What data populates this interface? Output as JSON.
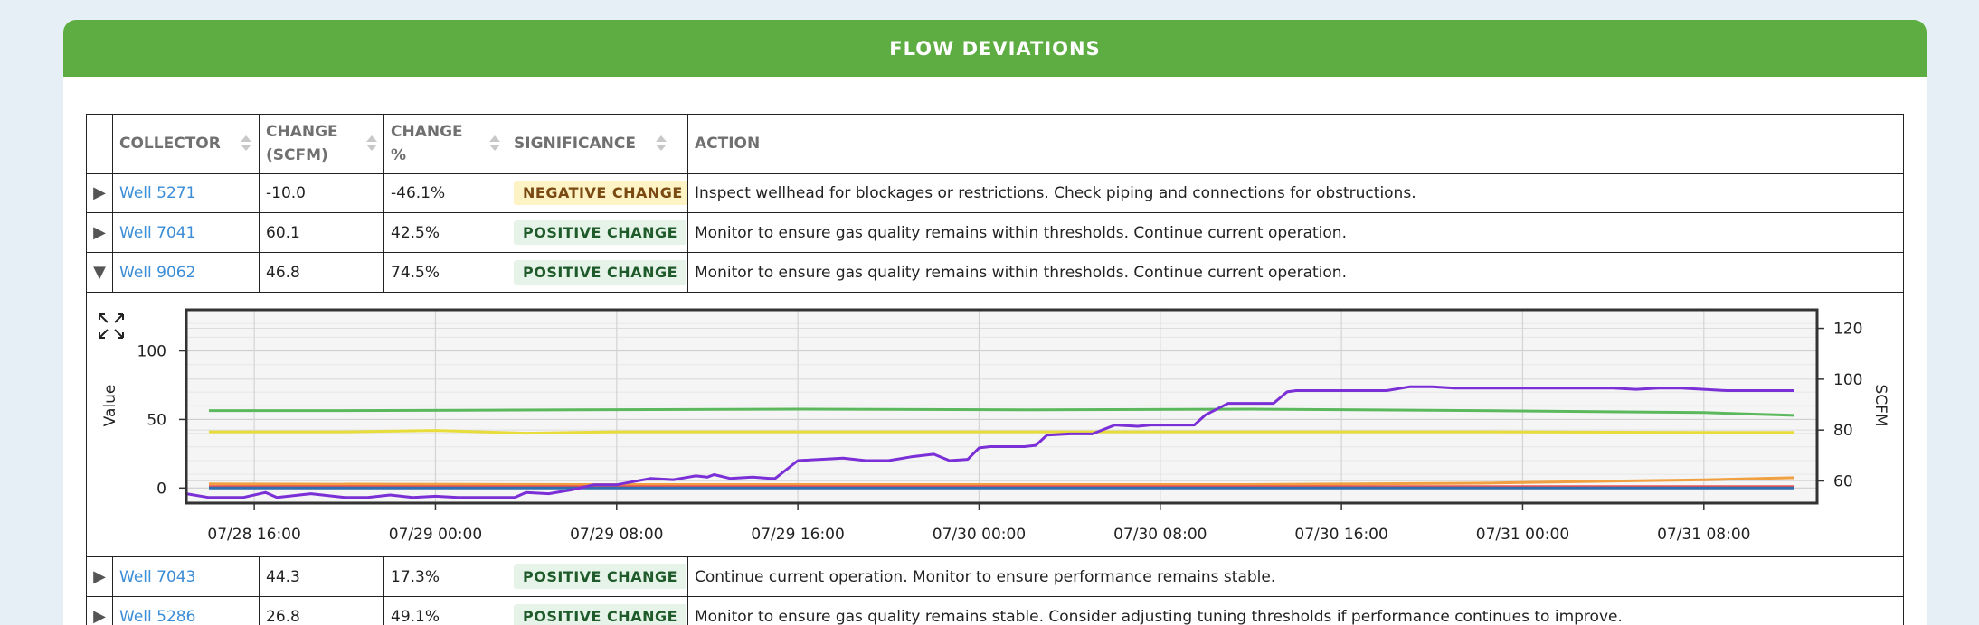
{
  "panel": {
    "title": "FLOW DEVIATIONS"
  },
  "table": {
    "headers": {
      "collector": "COLLECTOR",
      "change_scfm": "CHANGE (SCFM)",
      "change_pct": "CHANGE %",
      "significance": "SIGNIFICANCE",
      "action": "ACTION"
    },
    "rows_top": [
      {
        "well": "Well 5271",
        "change": "-10.0",
        "pct": "-46.1%",
        "significance": "NEGATIVE CHANGE",
        "type": "neg",
        "action": "Inspect wellhead for blockages or restrictions. Check piping and connections for obstructions.",
        "expanded": false
      },
      {
        "well": "Well 7041",
        "change": "60.1",
        "pct": "42.5%",
        "significance": "POSITIVE CHANGE",
        "type": "pos",
        "action": "Monitor to ensure gas quality remains within thresholds. Continue current operation.",
        "expanded": false
      },
      {
        "well": "Well 9062",
        "change": "46.8",
        "pct": "74.5%",
        "significance": "POSITIVE CHANGE",
        "type": "pos",
        "action": "Monitor to ensure gas quality remains within thresholds. Continue current operation.",
        "expanded": true
      }
    ],
    "rows_bottom": [
      {
        "well": "Well 7043",
        "change": "44.3",
        "pct": "17.3%",
        "significance": "POSITIVE CHANGE",
        "type": "pos",
        "action": "Continue current operation. Monitor to ensure performance remains stable.",
        "expanded": false
      },
      {
        "well": "Well 5286",
        "change": "26.8",
        "pct": "49.1%",
        "significance": "POSITIVE CHANGE",
        "type": "pos",
        "action": "Monitor to ensure gas quality remains stable. Consider adjusting tuning thresholds if performance continues to improve.",
        "expanded": false
      }
    ]
  },
  "icons": {
    "expand": "expand-arrows-icon",
    "collapsed": "caret-right-icon",
    "expanded": "caret-down-icon",
    "sort": "sort-arrows-icon"
  },
  "chart_data": {
    "type": "line",
    "ylabel": "Value",
    "ylabel_right": "SCFM",
    "xlabel": "",
    "x_tick_labels": [
      "07/28 16:00",
      "07/29 00:00",
      "07/29 08:00",
      "07/29 16:00",
      "07/30 00:00",
      "07/30 08:00",
      "07/30 16:00",
      "07/31 00:00",
      "07/31 08:00"
    ],
    "x_tick_hours": [
      16,
      24,
      32,
      40,
      48,
      56,
      64,
      72,
      80
    ],
    "xlim_hours": [
      13,
      85
    ],
    "ylim_left": [
      -11,
      130
    ],
    "yticks_left": [
      0,
      50,
      100
    ],
    "ylim_right": [
      51.3,
      127.3
    ],
    "yticks_right": [
      60,
      80,
      100,
      120
    ],
    "grid": true,
    "legend": "none",
    "series": [
      {
        "color": "#5cb85c",
        "axis": "left",
        "x": [
          14,
          20,
          30,
          40,
          50,
          60,
          70,
          80,
          84
        ],
        "values": [
          56.5,
          56.5,
          57,
          57.5,
          57,
          57.5,
          56.5,
          55,
          53
        ]
      },
      {
        "color": "#e8dc3a",
        "axis": "left",
        "x": [
          14,
          20,
          24,
          28,
          32,
          40,
          50,
          60,
          70,
          80,
          84
        ],
        "values": [
          41,
          41,
          42,
          40,
          41,
          41,
          41,
          41,
          41,
          40.5,
          40.5
        ]
      },
      {
        "color": "#f0a040",
        "axis": "left",
        "x": [
          14,
          30,
          50,
          60,
          70,
          80,
          84
        ],
        "values": [
          3,
          2.5,
          2.5,
          2.5,
          3.5,
          6,
          7.5
        ]
      },
      {
        "color": "#ef5350",
        "axis": "left",
        "x": [
          14,
          84
        ],
        "values": [
          1,
          1
        ]
      },
      {
        "color": "#2f6fb0",
        "axis": "left",
        "x": [
          14,
          84
        ],
        "values": [
          0,
          0
        ]
      },
      {
        "color": "#7b2fd6",
        "axis": "right",
        "x": [
          13.0,
          14.0,
          15.5,
          16.5,
          17.0,
          18.5,
          20.0,
          21.0,
          22.0,
          23.0,
          24.0,
          25.0,
          26.5,
          27.5,
          28.0,
          29.0,
          30.0,
          31.0,
          31.5,
          32.0,
          33.5,
          34.5,
          35.5,
          36.0,
          36.3,
          37.0,
          38.0,
          38.8,
          39.0,
          40.0,
          41.0,
          42.0,
          43.0,
          44.0,
          45.0,
          46.0,
          46.7,
          47.5,
          48.0,
          48.5,
          49.0,
          50.0,
          50.5,
          51.0,
          52.0,
          53.0,
          54.0,
          55.0,
          55.6,
          56.0,
          57.0,
          57.5,
          58.0,
          59.0,
          60.0,
          61.0,
          61.6,
          62.0,
          63.0,
          64.0,
          65.0,
          66.0,
          67.0,
          68.0,
          69.0,
          70.0,
          71.0,
          72.0,
          73.0,
          74.0,
          75.0,
          76.0,
          77.0,
          78.0,
          79.0,
          80.0,
          81.0,
          82.0,
          83.0,
          84.0
        ],
        "values": [
          55.0,
          53.5,
          53.5,
          55.5,
          53.5,
          55.0,
          53.5,
          53.5,
          54.5,
          53.5,
          54.0,
          53.5,
          53.5,
          53.5,
          55.5,
          55.0,
          56.5,
          58.5,
          58.5,
          58.5,
          61.0,
          60.5,
          62.0,
          61.5,
          62.5,
          61.0,
          61.5,
          61.0,
          61.0,
          68.0,
          68.5,
          69.0,
          68.0,
          68.0,
          69.5,
          70.5,
          68.0,
          68.5,
          73.0,
          73.5,
          73.5,
          73.5,
          74.0,
          78.0,
          78.5,
          78.5,
          82.0,
          81.5,
          82.0,
          82.0,
          82.0,
          82.0,
          86.0,
          90.5,
          90.5,
          90.5,
          95.0,
          95.5,
          95.5,
          95.5,
          95.5,
          95.5,
          97.0,
          97.0,
          96.5,
          96.5,
          96.5,
          96.5,
          96.5,
          96.5,
          96.5,
          96.5,
          96.0,
          96.5,
          96.5,
          96.0,
          95.5,
          95.5,
          95.5,
          95.5
        ]
      }
    ]
  }
}
